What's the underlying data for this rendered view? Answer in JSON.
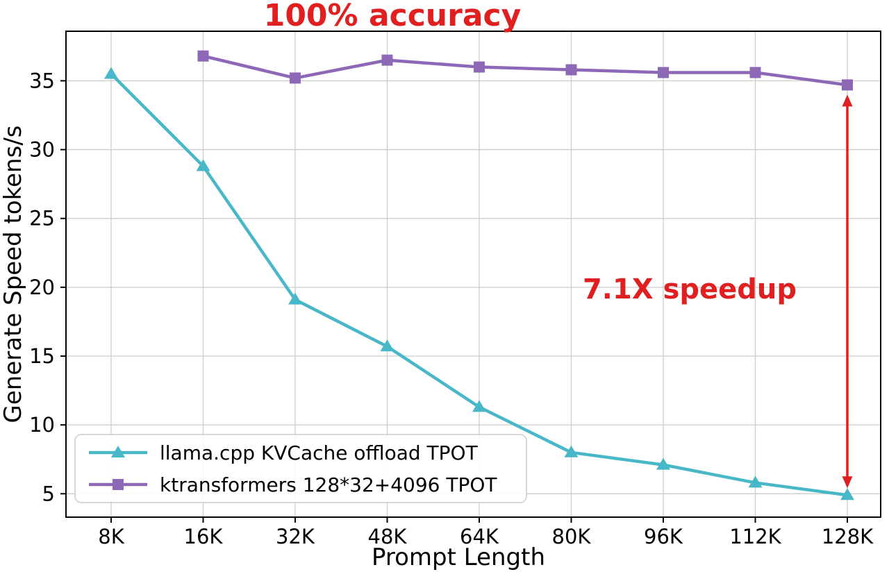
{
  "annotations": {
    "accuracy_label": "100% accuracy",
    "speedup_label": "7.1X speedup"
  },
  "colors": {
    "annotation": "#e02020",
    "grid": "#cccccc",
    "frame": "#000000",
    "background": "#ffffff",
    "legend_border": "#cccccc",
    "tick_text": "#000000"
  },
  "chart_data": {
    "type": "line",
    "title": "100% accuracy",
    "xlabel": "Prompt Length",
    "ylabel": "Generate Speed tokens/s",
    "categories": [
      "8K",
      "16K",
      "32K",
      "48K",
      "64K",
      "80K",
      "96K",
      "112K",
      "128K"
    ],
    "yticks": [
      5,
      10,
      15,
      20,
      25,
      30,
      35
    ],
    "ylim": [
      3.3,
      38.6
    ],
    "grid": true,
    "legend_position": "lower left",
    "series": [
      {
        "name": "llama.cpp KVCache offload TPOT",
        "color": "#48b7c8",
        "marker": "triangle",
        "x": [
          "8K",
          "16K",
          "32K",
          "48K",
          "64K",
          "80K",
          "96K",
          "112K",
          "128K"
        ],
        "values": [
          35.5,
          28.8,
          19.1,
          15.7,
          11.3,
          8.0,
          7.1,
          5.8,
          4.9
        ]
      },
      {
        "name": "ktransformers 128*32+4096 TPOT",
        "color": "#8d68b6",
        "marker": "square",
        "x": [
          "16K",
          "32K",
          "48K",
          "64K",
          "80K",
          "96K",
          "112K",
          "128K"
        ],
        "values": [
          36.8,
          35.2,
          36.5,
          36.0,
          35.8,
          35.6,
          35.6,
          34.7
        ]
      }
    ],
    "speedup_arrow": {
      "x": "128K",
      "from": 34.7,
      "to": 4.9
    }
  }
}
